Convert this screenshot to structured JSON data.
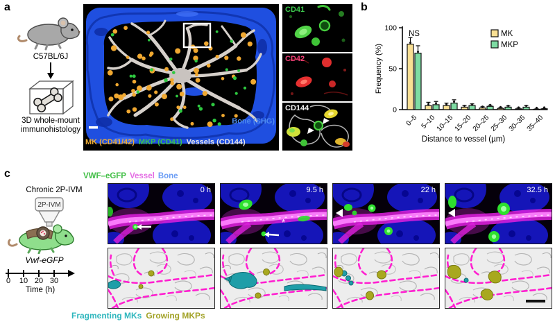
{
  "figure": {
    "background": "#ffffff"
  },
  "panels": {
    "a": {
      "label": "a",
      "strain": "C57BL/6J",
      "method_line1": "3D whole-mount",
      "method_line2": "immunohistology",
      "main_legend": {
        "bone": {
          "text": "Bone (SHG)",
          "color": "#4f8df0"
        },
        "mk": {
          "text": "MK (CD41/42)",
          "color": "#eead35"
        },
        "mkp": {
          "text": "MKP (CD41)",
          "color": "#3cc44c"
        },
        "vessels": {
          "text": "Vessels (CD144)",
          "color": "#e8e6e4"
        }
      },
      "insets": [
        {
          "label": "CD41",
          "label_color": "#3ecb4e"
        },
        {
          "label": "CD42",
          "label_color": "#ef4077"
        },
        {
          "label": "CD144",
          "label_color": "#f2f2f2"
        }
      ]
    },
    "b": {
      "label": "b"
    },
    "c": {
      "label": "c",
      "title": "Chronic 2P-IVM",
      "objective_label": "2P-IVM",
      "mouse_label": "Vwf-eGFP",
      "timeline": {
        "ticks": [
          "0",
          "10",
          "20",
          "30"
        ],
        "axis_label": "Time (h)"
      },
      "channel_legend": [
        {
          "text": "VWF–eGFP",
          "color": "#43bf47"
        },
        {
          "text": "Vessel",
          "color": "#e46ee4"
        },
        {
          "text": "Bone",
          "color": "#6d9ef5"
        }
      ],
      "timepoints": [
        "0 h",
        "9.5 h",
        "22 h",
        "32.5 h"
      ],
      "asterisk": "*",
      "bottom_legend": [
        {
          "text": "Fragmenting MKs",
          "color": "#2eb6bd"
        },
        {
          "text": "Growing MKPs",
          "color": "#a2a226"
        }
      ]
    }
  },
  "chart_data": {
    "type": "bar",
    "title": "",
    "categories": [
      "0–5",
      "5–10",
      "10–15",
      "15–20",
      "20–25",
      "25–30",
      "30–35",
      "35–40"
    ],
    "series": [
      {
        "name": "MK",
        "color": "#f9df93",
        "values": [
          80,
          5,
          5,
          3,
          2,
          1.5,
          1,
          0.5
        ],
        "errors": [
          8,
          4,
          3,
          2,
          1.5,
          1,
          1,
          0.5
        ]
      },
      {
        "name": "MKP",
        "color": "#7edba3",
        "values": [
          69,
          6,
          8,
          5,
          4,
          3,
          3,
          1
        ],
        "errors": [
          9,
          4,
          4,
          2,
          1.5,
          1.5,
          2,
          0.5
        ]
      }
    ],
    "ylabel": "Frequency (%)",
    "xlabel": "Distance to vessel (µm)",
    "ylim": [
      0,
      100
    ],
    "yticks": [
      0,
      50,
      100
    ],
    "annotation": "NS",
    "legend_position": "top-right",
    "grid": false
  }
}
